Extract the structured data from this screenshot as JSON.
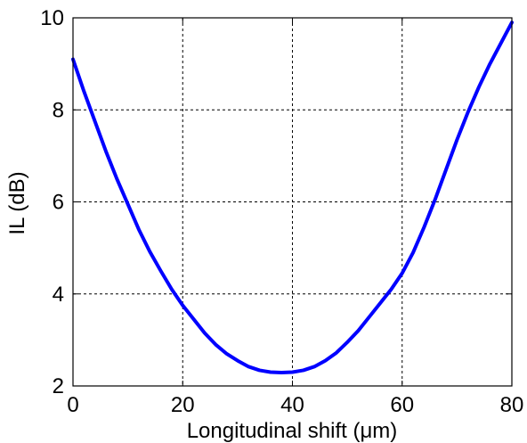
{
  "chart_data": {
    "type": "line",
    "xlabel": "Longitudinal shift (μm)",
    "ylabel": "IL (dB)",
    "xlim": [
      0,
      80
    ],
    "ylim": [
      2,
      10
    ],
    "xticks": [
      "0",
      "20",
      "40",
      "60",
      "80"
    ],
    "yticks": [
      "2",
      "4",
      "6",
      "8",
      "10"
    ],
    "grid": true,
    "grid_style": "dotted",
    "line_color": "#0000ff",
    "series": [
      {
        "x": [
          0,
          2,
          4,
          6,
          8,
          10,
          12,
          14,
          16,
          18,
          20,
          22,
          24,
          26,
          28,
          30,
          32,
          34,
          36,
          38,
          40,
          42,
          44,
          46,
          48,
          50,
          52,
          54,
          56,
          58,
          60,
          62,
          64,
          66,
          68,
          70,
          72,
          74,
          76,
          78,
          80
        ],
        "values": [
          9.1,
          8.4,
          7.75,
          7.1,
          6.5,
          5.95,
          5.4,
          4.92,
          4.5,
          4.1,
          3.75,
          3.45,
          3.15,
          2.9,
          2.7,
          2.55,
          2.42,
          2.34,
          2.3,
          2.29,
          2.3,
          2.34,
          2.42,
          2.55,
          2.72,
          2.95,
          3.2,
          3.5,
          3.8,
          4.1,
          4.45,
          4.9,
          5.45,
          6.05,
          6.7,
          7.35,
          7.95,
          8.5,
          9.0,
          9.45,
          9.9
        ]
      }
    ]
  }
}
